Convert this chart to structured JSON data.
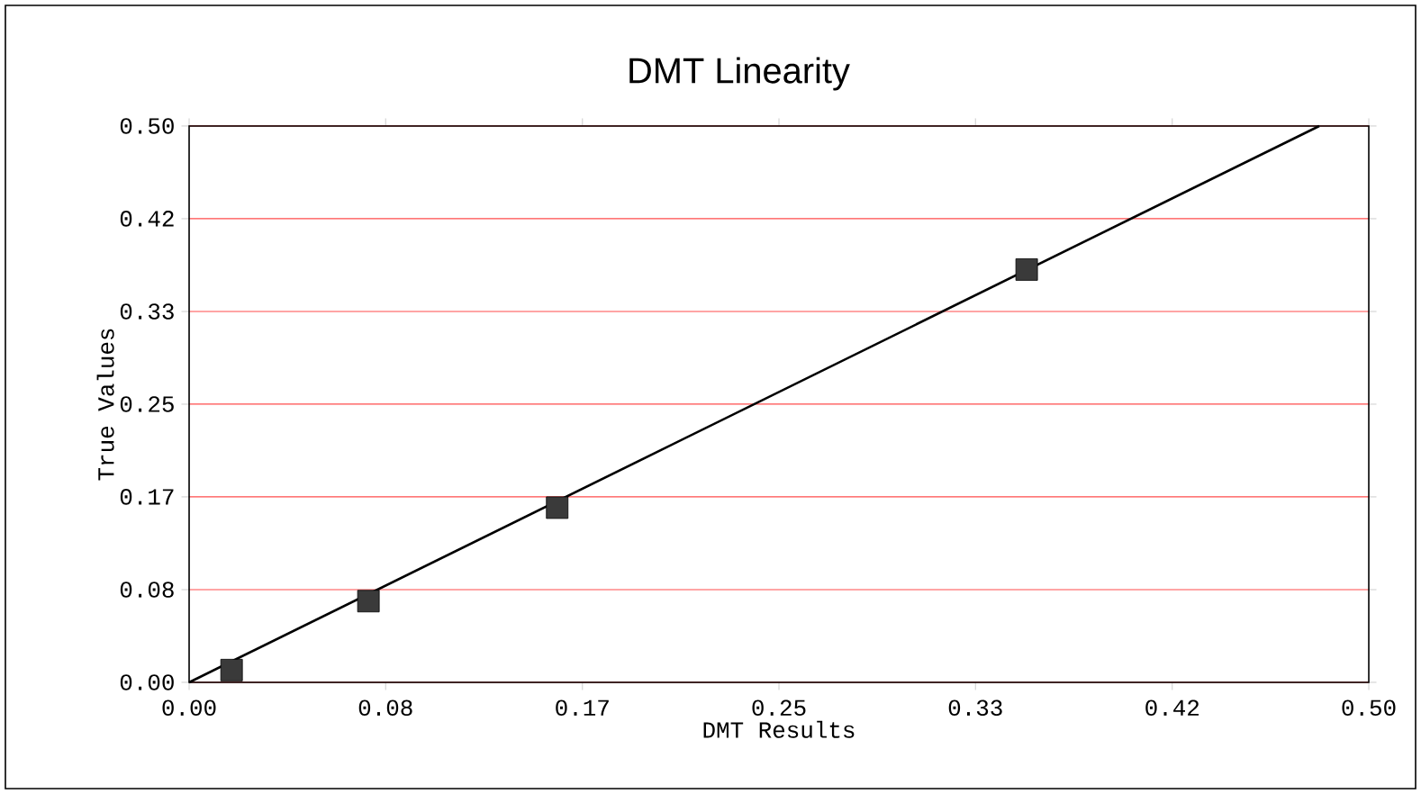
{
  "chart_data": {
    "type": "scatter",
    "title": "DMT Linearity",
    "xlabel": "DMT Results",
    "ylabel": "True Values",
    "xlim": [
      0,
      0.5
    ],
    "ylim": [
      0,
      0.5
    ],
    "xticks": [
      {
        "value": 0,
        "label": "0.00"
      },
      {
        "value": 0.0833,
        "label": "0.08"
      },
      {
        "value": 0.1667,
        "label": "0.17"
      },
      {
        "value": 0.25,
        "label": "0.25"
      },
      {
        "value": 0.3333,
        "label": "0.33"
      },
      {
        "value": 0.4167,
        "label": "0.42"
      },
      {
        "value": 0.5,
        "label": "0.50"
      }
    ],
    "yticks": [
      {
        "value": 0,
        "label": "0.00"
      },
      {
        "value": 0.0833,
        "label": "0.08"
      },
      {
        "value": 0.1667,
        "label": "0.17"
      },
      {
        "value": 0.25,
        "label": "0.25"
      },
      {
        "value": 0.3333,
        "label": "0.33"
      },
      {
        "value": 0.4167,
        "label": "0.42"
      },
      {
        "value": 0.5,
        "label": "0.50"
      }
    ],
    "grid": "y",
    "series": [
      {
        "color": "#3a3a3a",
        "marker": "square",
        "x": [
          0.018,
          0.076,
          0.156,
          0.355
        ],
        "values": [
          0.011,
          0.073,
          0.157,
          0.371
        ]
      },
      {
        "type": "line",
        "color": "#000000",
        "marker": "none",
        "line_style": "solid",
        "x": [
          0,
          0.479
        ],
        "values": [
          0,
          0.5
        ]
      }
    ]
  }
}
